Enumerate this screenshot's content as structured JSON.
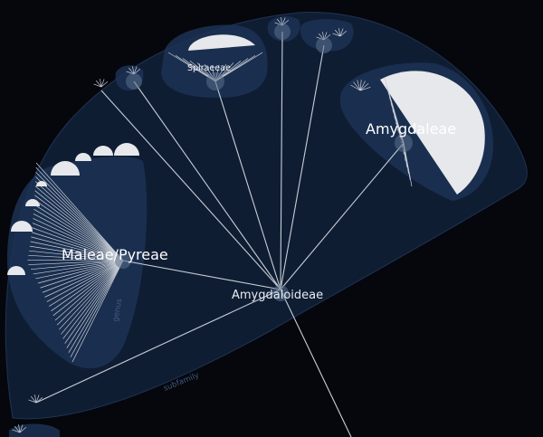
{
  "root": {
    "name": "Amygdaloideae",
    "rank": "subfamily"
  },
  "clades": [
    {
      "name": "Maleae/Pyreae",
      "rank": "genus"
    },
    {
      "name": "Amygdaleae"
    },
    {
      "name": "Spiraeeae"
    }
  ],
  "colors": {
    "background": "#05070c",
    "subfamily_region": "#0f1d33",
    "genus_region": "#1c3255",
    "edge": "#c9ced6",
    "leaf_fill": "#e6e8ec"
  }
}
